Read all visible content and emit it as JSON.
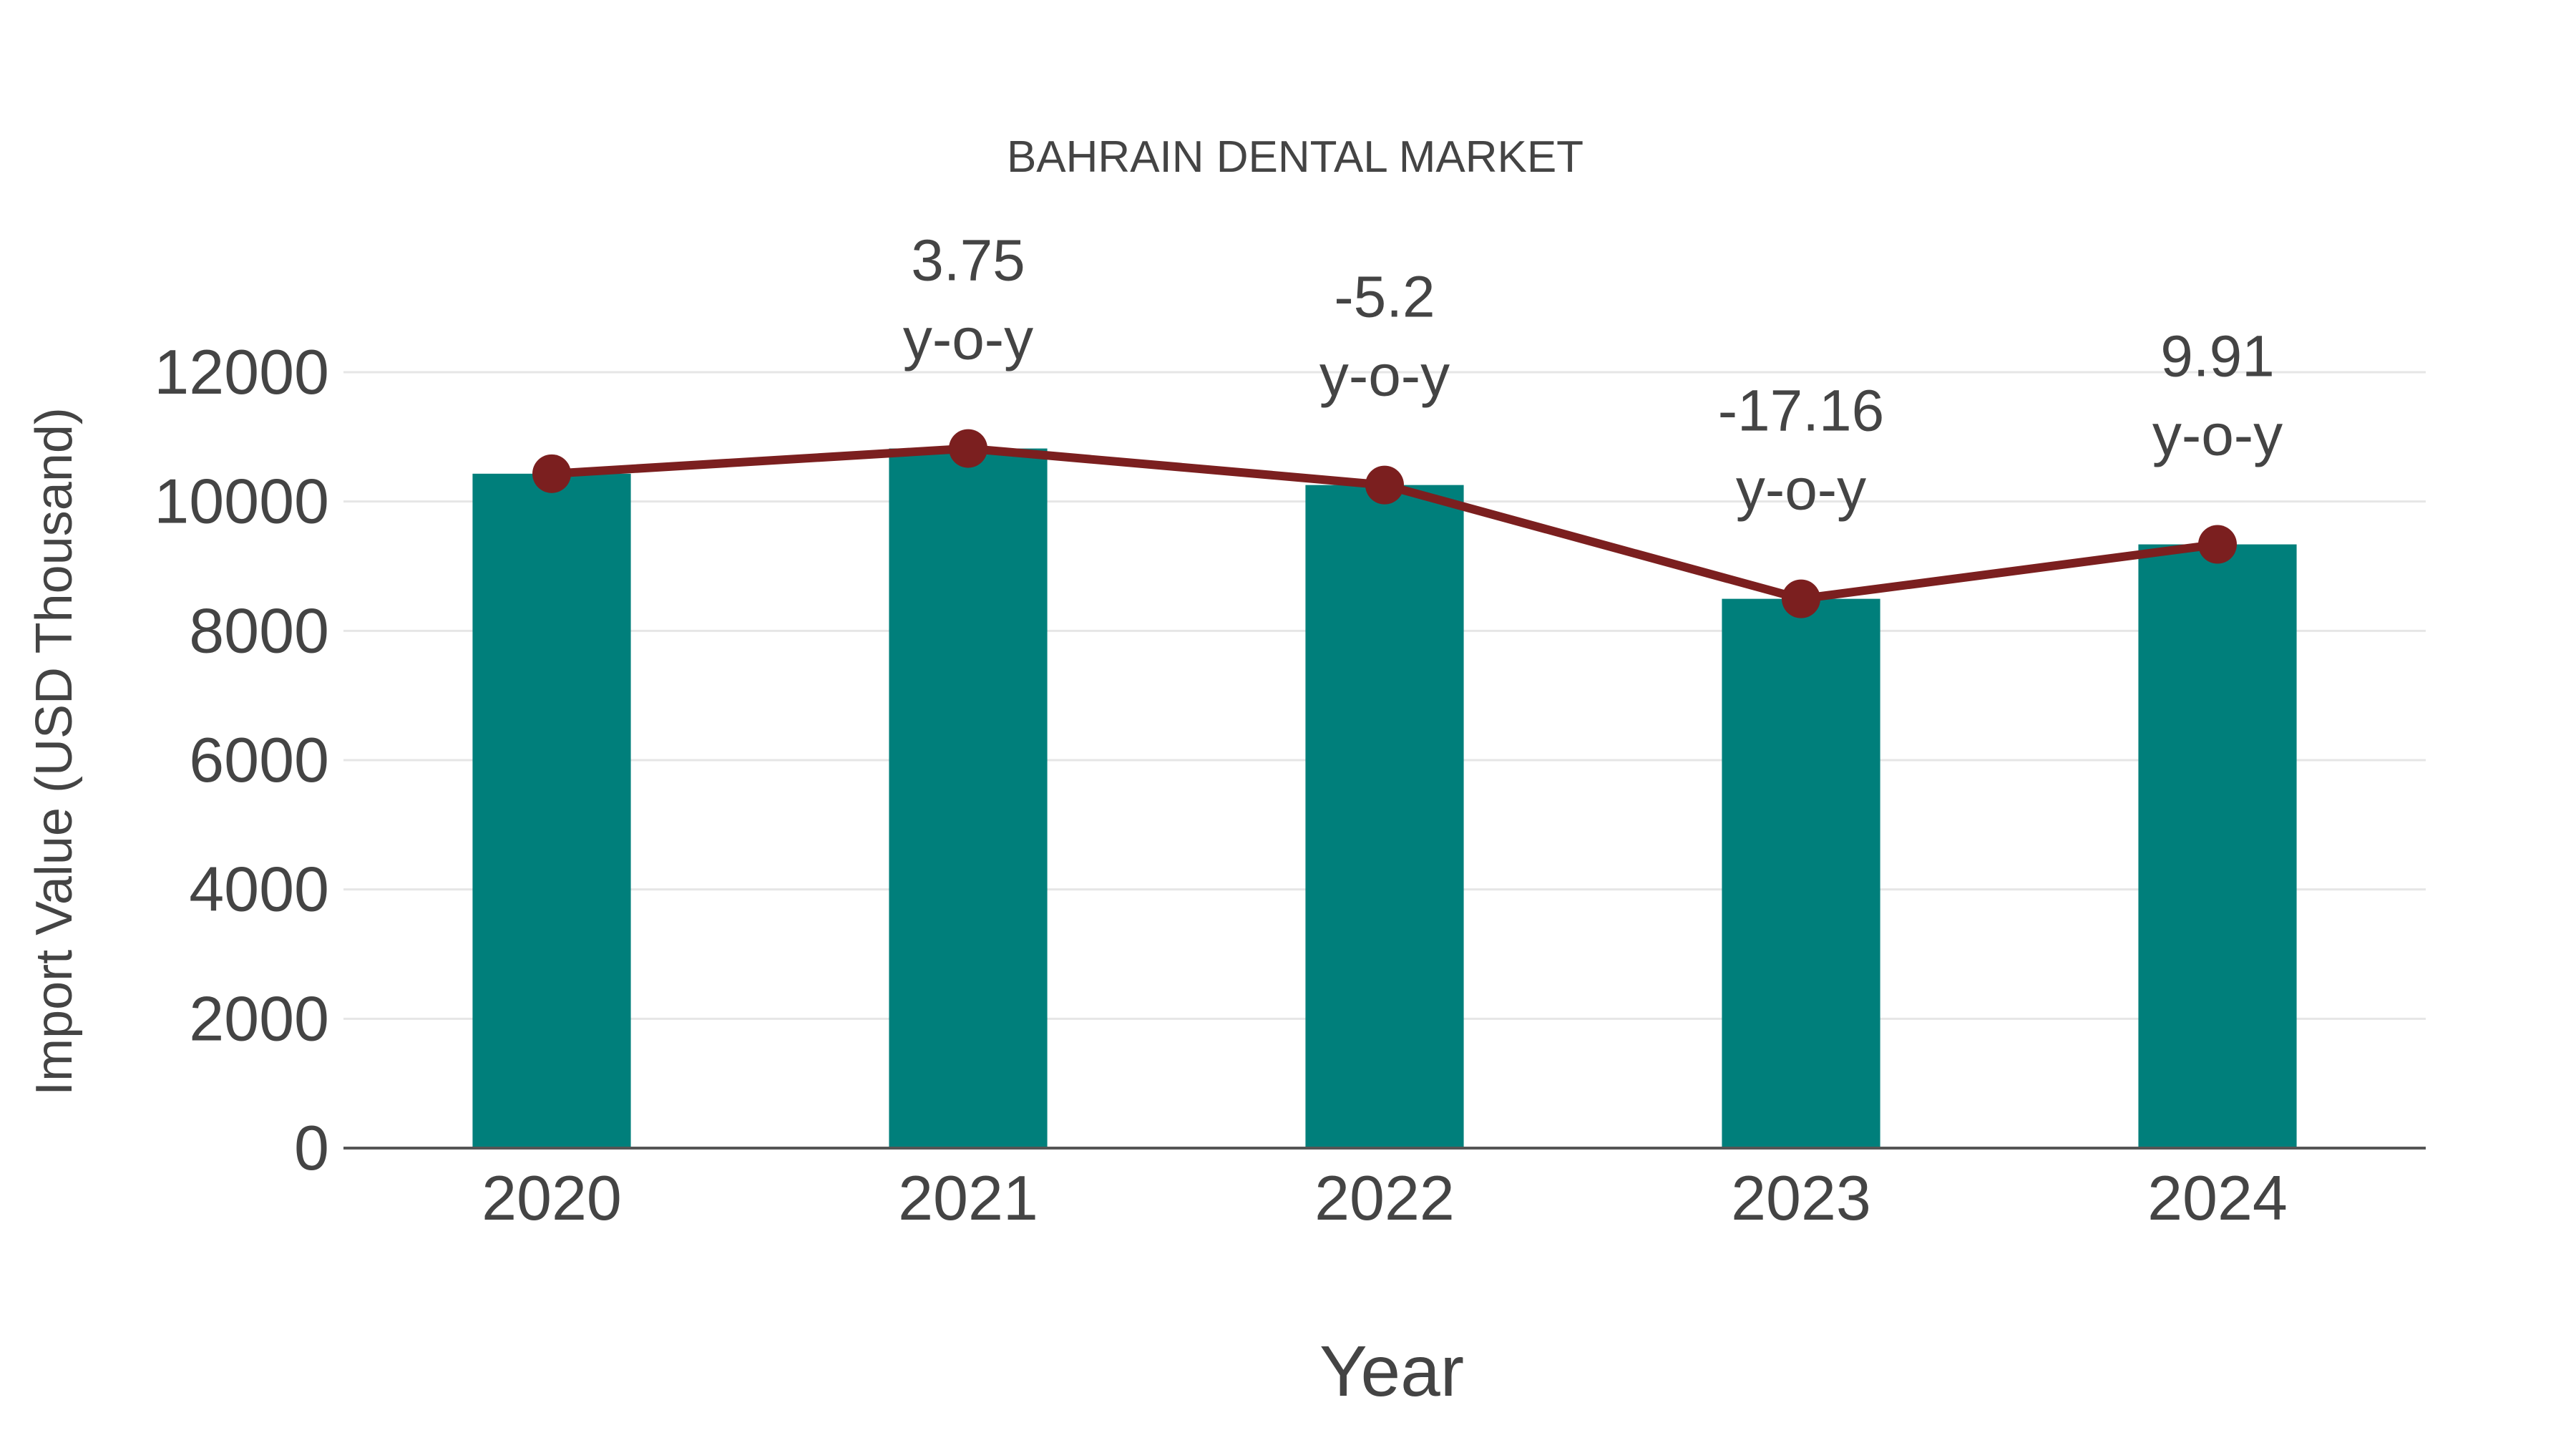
{
  "chart_data": {
    "type": "bar+line",
    "title": "BAHRAIN DENTAL MARKET",
    "xlabel": "Year",
    "ylabel": "Import Value (USD Thousand)",
    "categories": [
      "2020",
      "2021",
      "2022",
      "2023",
      "2024"
    ],
    "series": [
      {
        "name": "Import Value (bar)",
        "type": "bar",
        "color": "#007F7B",
        "values": [
          10430,
          10820,
          10255,
          8495,
          9337
        ]
      },
      {
        "name": "Import Value (line)",
        "type": "line",
        "color": "#7B1F1F",
        "values": [
          10430,
          10820,
          10255,
          8495,
          9337
        ]
      }
    ],
    "annotations": [
      {
        "category": "2021",
        "value": "3.75",
        "suffix": "y-o-y"
      },
      {
        "category": "2022",
        "value": "-5.2",
        "suffix": "y-o-y"
      },
      {
        "category": "2023",
        "value": "-17.16",
        "suffix": "y-o-y"
      },
      {
        "category": "2024",
        "value": "9.91",
        "suffix": "y-o-y"
      }
    ],
    "ylim": [
      0,
      12000
    ],
    "yticks": [
      0,
      2000,
      4000,
      6000,
      8000,
      10000,
      12000
    ],
    "grid": true,
    "legend": "none"
  },
  "colors": {
    "bar": "#007F7B",
    "line": "#7B1F1F",
    "grid": "#E6E6E6",
    "axis": "#555555",
    "text": "#444444"
  }
}
